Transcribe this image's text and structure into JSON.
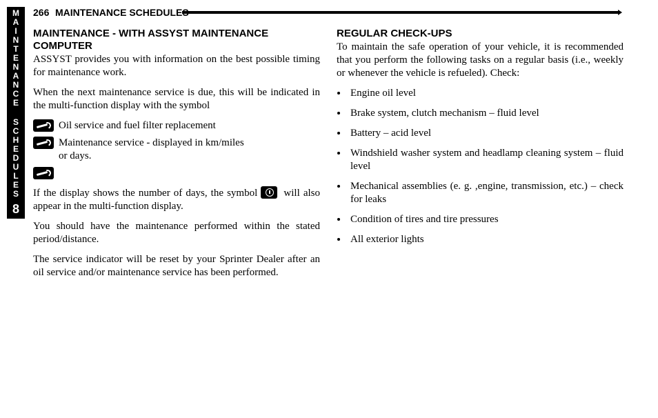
{
  "page_number": "266",
  "header_title": "MAINTENANCE SCHEDULES",
  "sidetab": {
    "word1": "MAINTENANCE",
    "word2": "SCHEDULES",
    "chapter": "8"
  },
  "left": {
    "h1": "MAINTENANCE - WITH ASSYST MAINTENANCE COMPUTER",
    "p1": "ASSYST provides you with information on the best possible timing for maintenance work.",
    "p2": "When the next maintenance service is due, this will be indicated in the multi-function display with the symbol",
    "sym1": "Oil service and fuel filter replacement",
    "sym2a": "Maintenance service - displayed in km/miles",
    "sym2b": "or days.",
    "p3a": "If the display shows the number of days, the symbol ",
    "p3b": " will also appear in the multi-function display.",
    "p4": "You should have the maintenance performed within the stated period/distance.",
    "p5": "The service indicator will be reset by your Sprinter Dealer after an oil service and/or maintenance service has been performed."
  },
  "right": {
    "h1": "REGULAR CHECK-UPS",
    "p1": "To maintain the safe operation of your vehicle, it is recommended that you perform the following tasks on a regular basis (i.e., weekly or whenever the vehicle is refueled). Check:",
    "items": [
      "Engine oil level",
      "Brake system, clutch mechanism – fluid level",
      "Battery – acid level",
      "Windshield washer system and headlamp cleaning system – fluid level",
      "Mechanical assemblies (e. g. ,engine, transmission, etc.) – check for leaks",
      "Condition of tires and tire pressures",
      "All exterior lights"
    ]
  }
}
